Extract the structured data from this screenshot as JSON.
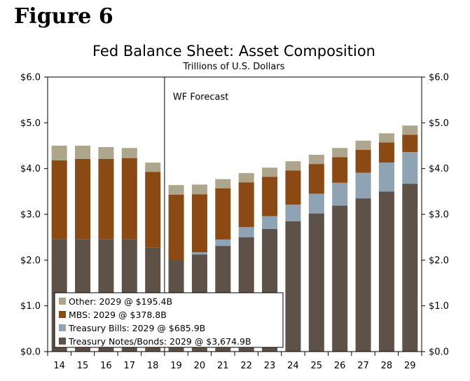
{
  "figure_label": "Figure 6",
  "chart_data": {
    "type": "bar",
    "stacked": true,
    "title": "Fed Balance Sheet: Asset Composition",
    "subtitle": "Trillions of U.S. Dollars",
    "categories": [
      "14",
      "15",
      "16",
      "17",
      "18",
      "19",
      "20",
      "21",
      "22",
      "23",
      "24",
      "25",
      "26",
      "27",
      "28",
      "29"
    ],
    "ylim": [
      0,
      6
    ],
    "yticks": [
      0,
      1,
      2,
      3,
      4,
      5,
      6
    ],
    "ytick_labels": [
      "$0.0",
      "$1.0",
      "$2.0",
      "$3.0",
      "$4.0",
      "$5.0",
      "$6.0"
    ],
    "forecast_marker": {
      "after_category": "18",
      "label": "WF Forecast"
    },
    "legend_position": "bottom-left",
    "series": [
      {
        "name": "Treasury Notes/Bonds",
        "legend_label": "Treasury Notes/Bonds: 2029 @ $3,674.9B",
        "color": "#5e5248",
        "values": [
          2.46,
          2.46,
          2.46,
          2.46,
          2.27,
          1.99,
          2.12,
          2.31,
          2.5,
          2.68,
          2.85,
          3.02,
          3.19,
          3.35,
          3.5,
          3.67
        ]
      },
      {
        "name": "Treasury Bills",
        "legend_label": "Treasury Bills: 2029 @ $685.9B",
        "color": "#8ea3b3",
        "values": [
          0.0,
          0.0,
          0.0,
          0.0,
          0.0,
          0.0,
          0.05,
          0.14,
          0.22,
          0.28,
          0.36,
          0.43,
          0.5,
          0.56,
          0.63,
          0.69
        ]
      },
      {
        "name": "MBS",
        "legend_label": "MBS: 2029 @ $378.8B",
        "color": "#8b4a14",
        "values": [
          1.72,
          1.75,
          1.75,
          1.77,
          1.66,
          1.44,
          1.27,
          1.12,
          0.98,
          0.86,
          0.75,
          0.65,
          0.56,
          0.5,
          0.44,
          0.38
        ]
      },
      {
        "name": "Other",
        "legend_label": "Other: 2029 @ $195.4B",
        "color": "#aea68c",
        "values": [
          0.32,
          0.29,
          0.26,
          0.22,
          0.2,
          0.21,
          0.21,
          0.2,
          0.2,
          0.2,
          0.2,
          0.2,
          0.2,
          0.2,
          0.2,
          0.2
        ]
      }
    ]
  }
}
